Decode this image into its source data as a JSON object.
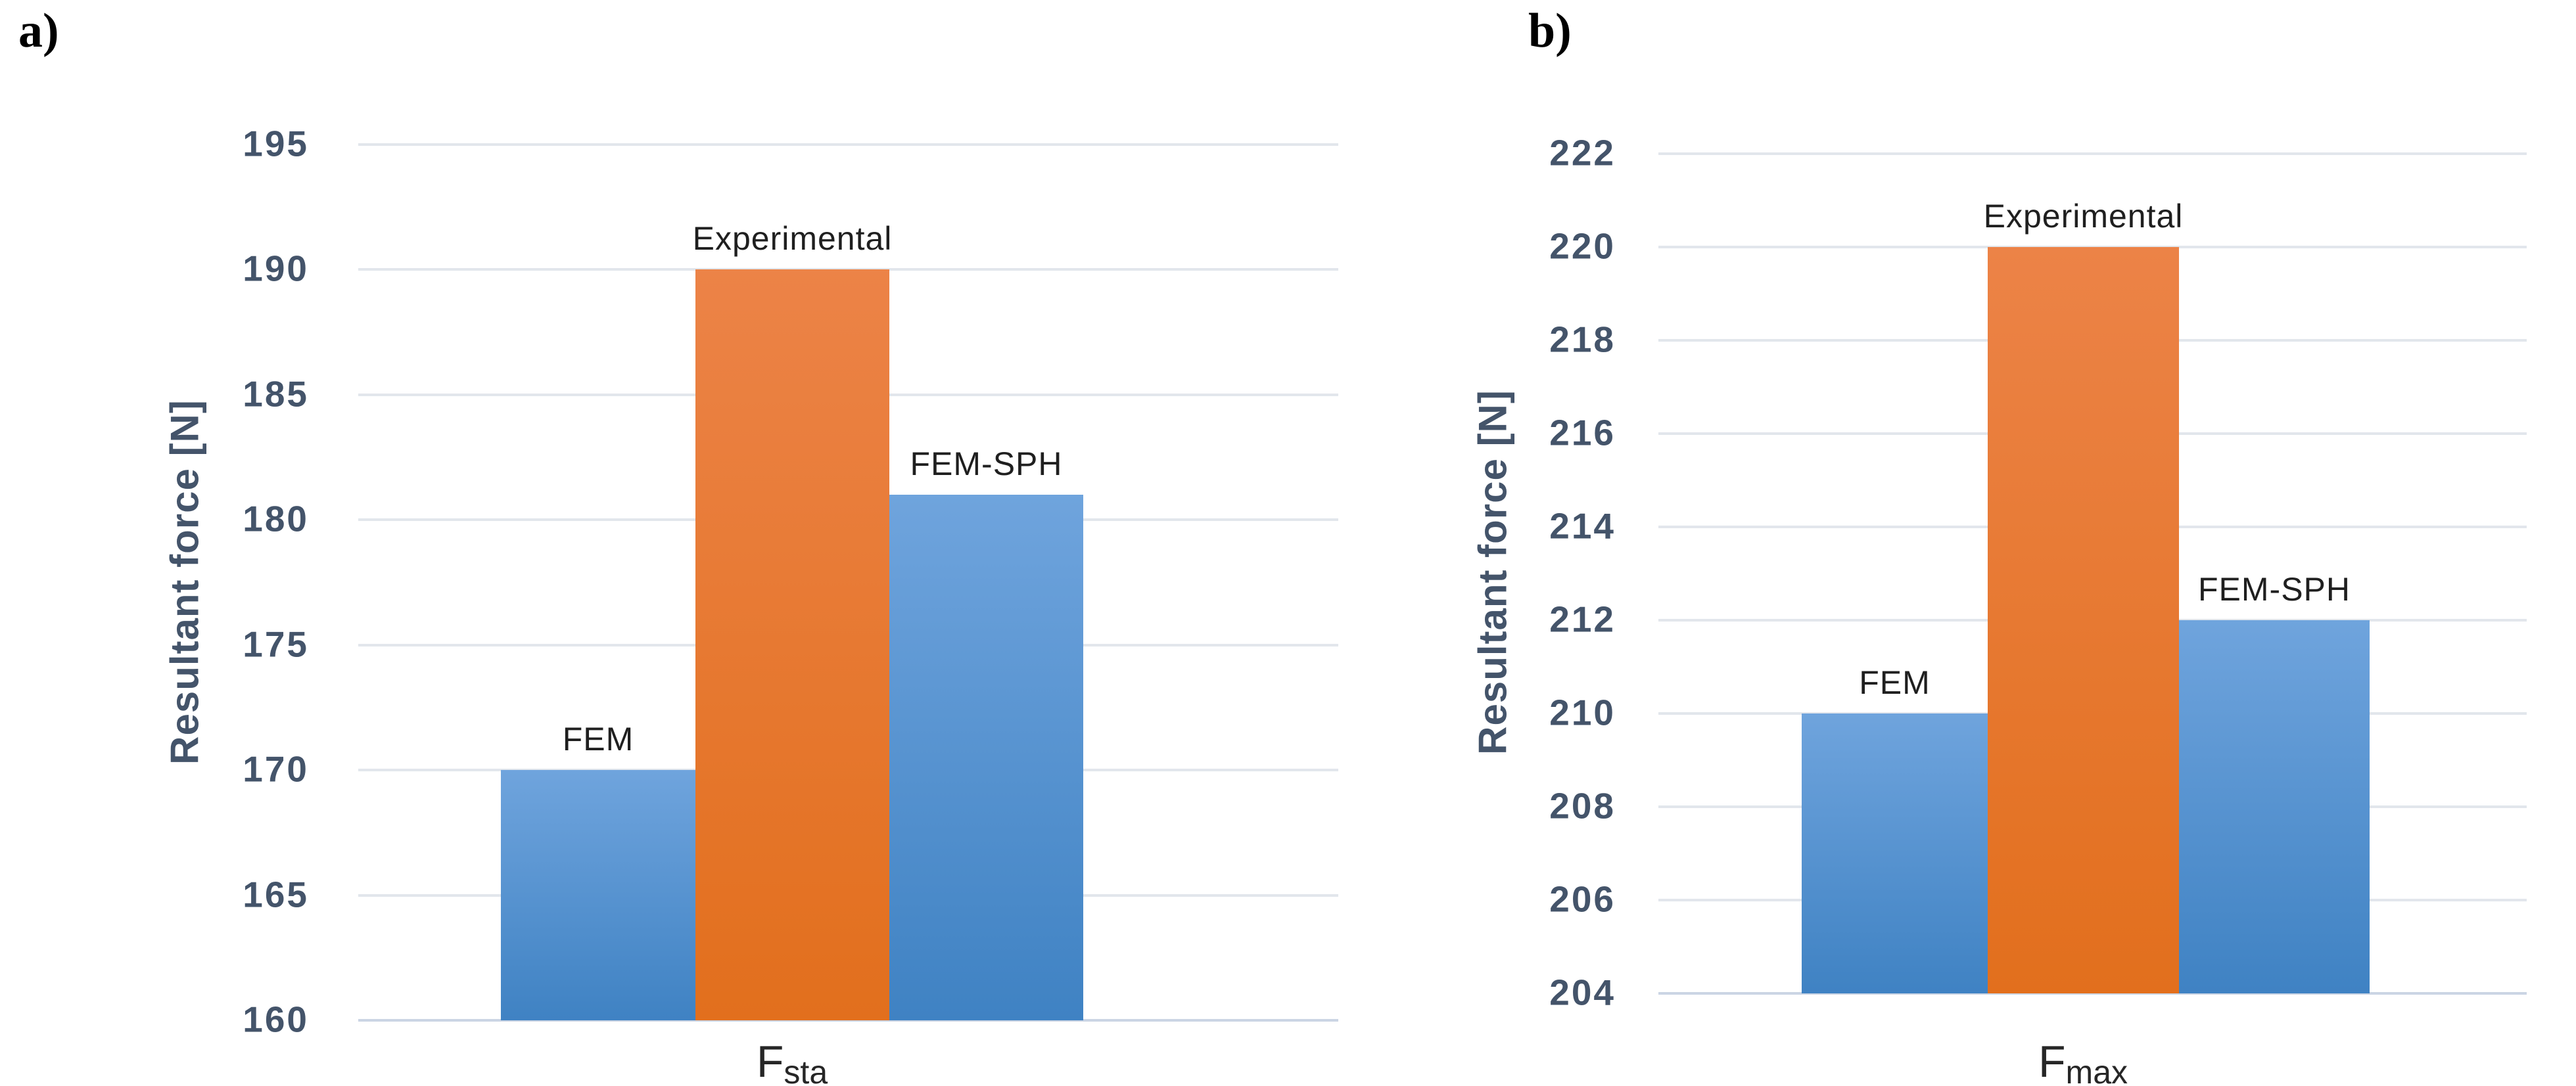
{
  "figure": {
    "description": "Comparison of resultant forces: FEM vs Experimental vs FEM-SPH"
  },
  "colors": {
    "background": "#FFFFFF",
    "axis_text": "#44546A",
    "gridline": "#E2E6EC",
    "baseline": "#CBD5E4",
    "bar_label_text": "#1F1F1F",
    "figure_label_text": "#000000",
    "blue_bar_top": "#6FA4DD",
    "blue_bar_bottom": "#3F82C3",
    "orange_bar_top": "#EC8347",
    "orange_bar_bottom": "#E26F1D"
  },
  "chart_data": [
    {
      "id": "a",
      "type": "bar",
      "panel_label": "a)",
      "title": "",
      "ylabel": "Resultant force [N]",
      "xlabel_main": "F",
      "xlabel_sub": "sta",
      "categories": [
        "FEM",
        "Experimental",
        "FEM-SPH"
      ],
      "values": [
        170,
        190,
        181
      ],
      "bar_colors": [
        "blue",
        "orange",
        "blue"
      ],
      "ylim": [
        160,
        195
      ],
      "ytick_step": 5,
      "yticks": [
        195,
        190,
        185,
        180,
        175,
        170,
        165,
        160
      ],
      "grid": true,
      "legend_position": "none"
    },
    {
      "id": "b",
      "type": "bar",
      "panel_label": "b)",
      "title": "",
      "ylabel": "Resultant force [N]",
      "xlabel_main": "F",
      "xlabel_sub": "max",
      "categories": [
        "FEM",
        "Experimental",
        "FEM-SPH"
      ],
      "values": [
        210,
        220,
        212
      ],
      "bar_colors": [
        "blue",
        "orange",
        "blue"
      ],
      "ylim": [
        204,
        222
      ],
      "ytick_step": 2,
      "yticks": [
        222,
        220,
        218,
        216,
        214,
        212,
        210,
        208,
        206,
        204
      ],
      "grid": true,
      "legend_position": "none"
    }
  ]
}
